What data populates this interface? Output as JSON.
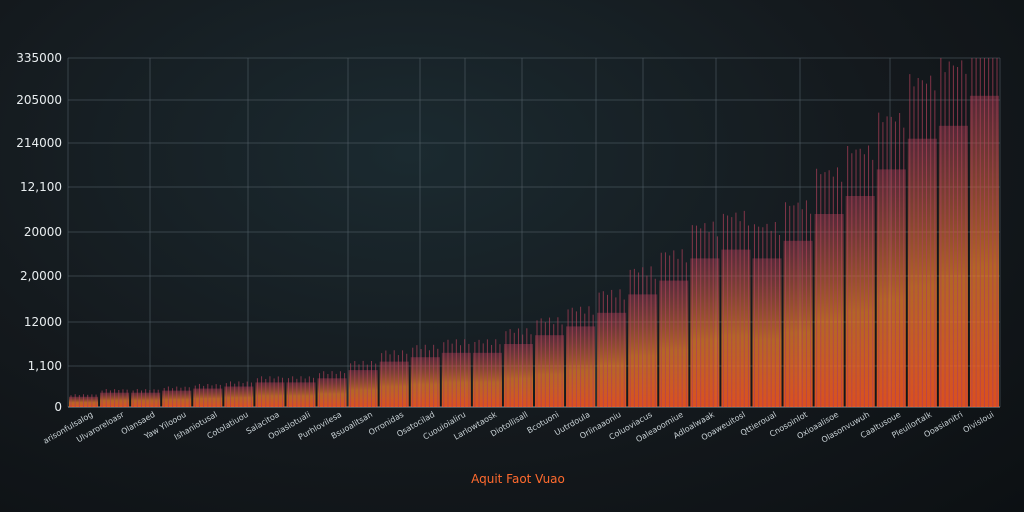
{
  "chart_data": {
    "type": "bar",
    "title": "",
    "xlabel": "Aquit Faot Vuao",
    "ylabel": "",
    "y_tick_labels": [
      "0",
      "1,100",
      "12000",
      "2,0000",
      "20000",
      "12,100",
      "214000",
      "205000",
      "335000"
    ],
    "ylim": [
      0,
      8
    ],
    "grid": true,
    "colors": {
      "low": "#ff5a1f",
      "mid": "#ff8a2a",
      "high": "#ffb347",
      "stem": "#b0405a",
      "grid": "#55626a"
    },
    "categories": [
      "arisonfulsalog",
      "Ulvaroreloasr",
      "Olansaed",
      "Yaw Yilooou",
      "Ishaniotusal",
      "Cotolatiuou",
      "Salacitoa",
      "Ooiaslotuali",
      "Purhlovilesa",
      "Bsuoalitsan",
      "Orronidas",
      "Osatocilad",
      "Cuouioialiru",
      "Larlowtaosk",
      "Diotollisall",
      "Bcotuoni",
      "Uutrdoula",
      "Orlinaaoniu",
      "Coluoviacus",
      "Oaleaoomiue",
      "Adloalwaak",
      "Ooaweuitosl",
      "Qttieroual",
      "Cnosoinlot",
      "Oxioaalisoe",
      "Olasonvuwuh",
      "Caaltusoue",
      "Pleuilortalk",
      "Ooasianitri",
      "Oivisloui"
    ],
    "values": [
      0.25,
      0.35,
      0.35,
      0.4,
      0.45,
      0.5,
      0.6,
      0.6,
      0.7,
      0.9,
      1.1,
      1.2,
      1.3,
      1.3,
      1.5,
      1.7,
      1.9,
      2.2,
      2.6,
      2.9,
      3.4,
      3.6,
      3.4,
      3.8,
      4.4,
      4.8,
      5.4,
      6.1,
      6.4,
      7.1
    ]
  }
}
